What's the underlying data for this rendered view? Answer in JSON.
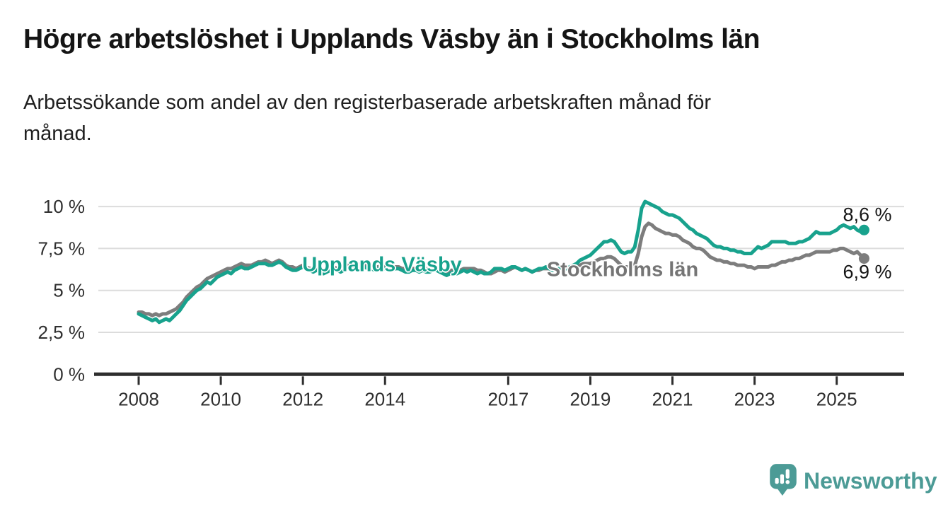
{
  "header": {
    "title": "Högre arbetslöshet i Upplands Väsby än i Stockholms län",
    "subtitle": "Arbetssökande som andel av den registerbaserade arbetskraften månad för\nmånad."
  },
  "chart_data": {
    "type": "line",
    "x_unit": "month",
    "x_start": "2008-01",
    "x_end": "2025-09",
    "ylim": [
      0,
      10.5
    ],
    "grid": "horizontal",
    "legend_position": "inline-labels",
    "yticks": [
      {
        "value": 0,
        "label": "0 %"
      },
      {
        "value": 2.5,
        "label": "2,5 %"
      },
      {
        "value": 5,
        "label": "5 %"
      },
      {
        "value": 7.5,
        "label": "7,5 %"
      },
      {
        "value": 10,
        "label": "10 %"
      }
    ],
    "xticks": [
      2008,
      2010,
      2012,
      2014,
      2017,
      2019,
      2021,
      2023,
      2025
    ],
    "series": [
      {
        "name": "Stockholms län",
        "color": "#7d7d7d",
        "end_label": "6,9 %",
        "end_value": 6.9,
        "values": [
          3.7,
          3.7,
          3.6,
          3.6,
          3.5,
          3.6,
          3.5,
          3.6,
          3.6,
          3.7,
          3.8,
          3.9,
          4.1,
          4.3,
          4.6,
          4.8,
          5.0,
          5.2,
          5.3,
          5.5,
          5.7,
          5.8,
          5.9,
          6.0,
          6.1,
          6.2,
          6.3,
          6.3,
          6.4,
          6.5,
          6.6,
          6.5,
          6.5,
          6.5,
          6.6,
          6.7,
          6.7,
          6.8,
          6.7,
          6.6,
          6.7,
          6.8,
          6.7,
          6.5,
          6.4,
          6.4,
          6.3,
          6.4,
          6.5,
          6.4,
          6.3,
          6.3,
          6.3,
          6.2,
          6.1,
          6.2,
          6.3,
          6.4,
          6.3,
          6.3,
          6.4,
          6.5,
          6.5,
          6.4,
          6.5,
          6.6,
          6.5,
          6.5,
          6.4,
          6.4,
          6.4,
          6.5,
          6.4,
          6.4,
          6.3,
          6.4,
          6.4,
          6.3,
          6.3,
          6.2,
          6.3,
          6.3,
          6.3,
          6.4,
          6.3,
          6.2,
          6.3,
          6.3,
          6.2,
          6.2,
          6.1,
          6.2,
          6.2,
          6.2,
          6.2,
          6.3,
          6.3,
          6.3,
          6.3,
          6.2,
          6.2,
          6.1,
          6.0,
          6.0,
          6.1,
          6.2,
          6.2,
          6.1,
          6.2,
          6.3,
          6.4,
          6.3,
          6.2,
          6.3,
          6.2,
          6.1,
          6.2,
          6.2,
          6.3,
          6.3,
          6.3,
          6.3,
          6.3,
          6.2,
          6.3,
          6.3,
          6.4,
          6.4,
          6.5,
          6.5,
          6.6,
          6.6,
          6.6,
          6.7,
          6.8,
          6.9,
          6.9,
          7.0,
          7.0,
          6.9,
          6.7,
          6.5,
          6.4,
          6.4,
          6.4,
          6.5,
          7.2,
          8.2,
          8.8,
          9.0,
          8.9,
          8.7,
          8.6,
          8.5,
          8.4,
          8.4,
          8.3,
          8.3,
          8.2,
          8.0,
          7.9,
          7.8,
          7.6,
          7.5,
          7.5,
          7.4,
          7.2,
          7.0,
          6.9,
          6.8,
          6.8,
          6.7,
          6.7,
          6.6,
          6.6,
          6.5,
          6.5,
          6.5,
          6.4,
          6.4,
          6.3,
          6.4,
          6.4,
          6.4,
          6.4,
          6.5,
          6.5,
          6.6,
          6.7,
          6.7,
          6.8,
          6.8,
          6.9,
          6.9,
          7.0,
          7.1,
          7.1,
          7.2,
          7.3,
          7.3,
          7.3,
          7.3,
          7.3,
          7.4,
          7.4,
          7.5,
          7.5,
          7.4,
          7.3,
          7.2,
          7.3,
          7.1,
          6.9
        ]
      },
      {
        "name": "Upplands Väsby",
        "color": "#18a28d",
        "end_label": "8,6 %",
        "end_value": 8.6,
        "values": [
          3.6,
          3.5,
          3.4,
          3.3,
          3.2,
          3.3,
          3.1,
          3.2,
          3.3,
          3.2,
          3.4,
          3.6,
          3.8,
          4.1,
          4.4,
          4.6,
          4.8,
          5.0,
          5.1,
          5.3,
          5.5,
          5.4,
          5.6,
          5.8,
          5.9,
          6.0,
          6.1,
          6.0,
          6.2,
          6.3,
          6.4,
          6.3,
          6.3,
          6.4,
          6.5,
          6.6,
          6.6,
          6.6,
          6.5,
          6.5,
          6.6,
          6.7,
          6.6,
          6.4,
          6.3,
          6.2,
          6.2,
          6.3,
          6.4,
          6.3,
          6.2,
          6.1,
          6.2,
          6.1,
          6.0,
          6.1,
          6.2,
          6.3,
          6.2,
          6.1,
          6.2,
          6.3,
          6.4,
          6.3,
          6.4,
          6.5,
          6.4,
          6.3,
          6.3,
          6.2,
          6.3,
          6.4,
          6.3,
          6.2,
          6.2,
          6.3,
          6.3,
          6.2,
          6.1,
          6.1,
          6.2,
          6.2,
          6.1,
          6.2,
          6.1,
          6.1,
          6.2,
          6.2,
          6.1,
          6.0,
          5.9,
          6.0,
          6.1,
          6.0,
          6.1,
          6.2,
          6.1,
          6.2,
          6.1,
          6.0,
          6.1,
          6.0,
          6.0,
          6.1,
          6.3,
          6.3,
          6.3,
          6.2,
          6.3,
          6.4,
          6.4,
          6.3,
          6.2,
          6.3,
          6.2,
          6.1,
          6.2,
          6.3,
          6.3,
          6.4,
          6.3,
          6.2,
          6.3,
          6.3,
          6.2,
          6.3,
          6.4,
          6.5,
          6.6,
          6.8,
          6.9,
          7.0,
          7.1,
          7.3,
          7.5,
          7.7,
          7.9,
          7.9,
          8.0,
          7.9,
          7.6,
          7.3,
          7.2,
          7.3,
          7.3,
          7.6,
          8.6,
          9.9,
          10.3,
          10.2,
          10.1,
          10.0,
          9.9,
          9.7,
          9.6,
          9.5,
          9.5,
          9.4,
          9.3,
          9.1,
          8.9,
          8.7,
          8.6,
          8.4,
          8.3,
          8.2,
          8.1,
          7.9,
          7.7,
          7.6,
          7.6,
          7.5,
          7.5,
          7.4,
          7.4,
          7.3,
          7.3,
          7.2,
          7.2,
          7.2,
          7.4,
          7.6,
          7.5,
          7.6,
          7.7,
          7.9,
          7.9,
          7.9,
          7.9,
          7.9,
          7.8,
          7.8,
          7.8,
          7.9,
          7.9,
          8.0,
          8.1,
          8.3,
          8.5,
          8.4,
          8.4,
          8.4,
          8.4,
          8.5,
          8.6,
          8.8,
          8.9,
          8.8,
          8.7,
          8.8,
          8.6,
          8.5,
          8.6
        ]
      }
    ]
  },
  "footer": {
    "brand": "Newsworthy",
    "brand_color": "#4c9b96",
    "logo_icon": "newsworthy-chart-speech-bubble-icon"
  }
}
